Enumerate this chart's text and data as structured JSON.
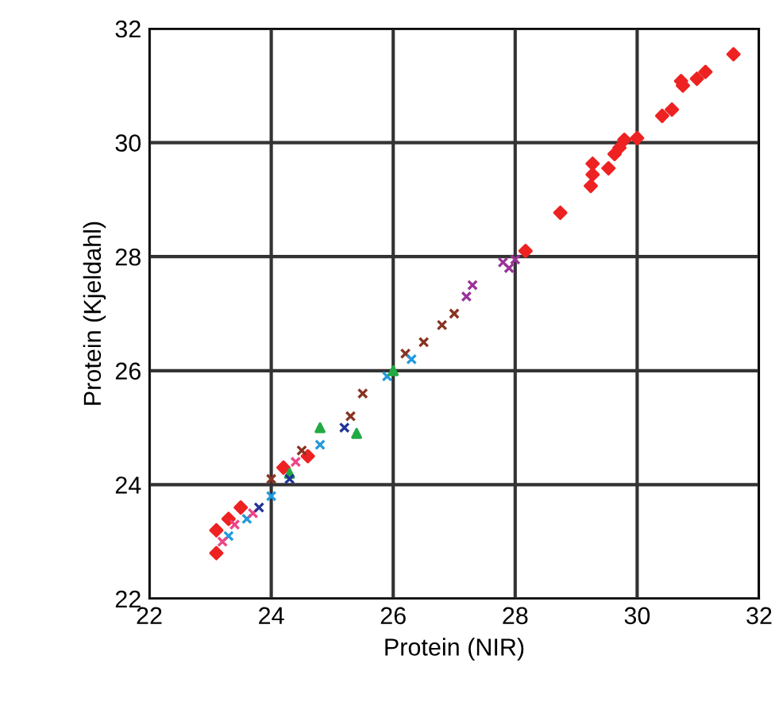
{
  "chart_data": {
    "type": "scatter",
    "xlabel": "Protein (NIR)",
    "ylabel": "Protein (Kjeldahl)",
    "xlim": [
      22,
      32
    ],
    "ylim": [
      22,
      32
    ],
    "xticks": [
      22,
      24,
      26,
      28,
      30,
      32
    ],
    "yticks": [
      22,
      24,
      26,
      28,
      30,
      32
    ],
    "grid": true,
    "series": [
      {
        "color": "#ee2222",
        "marker": "diamond",
        "x": [
          31.58,
          31.12,
          30.98,
          30.75,
          30.72,
          30.57,
          30.41,
          30.0,
          29.79,
          29.71,
          29.63,
          29.53,
          29.27,
          29.27,
          29.24,
          28.74,
          28.17,
          23.1,
          23.1,
          23.3,
          23.5,
          24.2,
          24.6
        ],
        "values": [
          31.55,
          31.24,
          31.12,
          31.0,
          31.08,
          30.58,
          30.47,
          30.08,
          30.05,
          29.91,
          29.8,
          29.55,
          29.63,
          29.44,
          29.24,
          28.77,
          28.1,
          22.8,
          23.2,
          23.4,
          23.6,
          24.3,
          24.5
        ]
      },
      {
        "color": "#993399",
        "marker": "cross",
        "x": [
          27.8,
          28.0,
          27.9,
          27.2,
          27.3
        ],
        "values": [
          27.9,
          27.95,
          27.8,
          27.3,
          27.5
        ]
      },
      {
        "color": "#883322",
        "marker": "cross",
        "x": [
          26.5,
          26.8,
          27.0,
          25.5,
          25.3,
          24.5,
          24.0,
          26.2
        ],
        "values": [
          26.5,
          26.8,
          27.0,
          25.6,
          25.2,
          24.6,
          24.1,
          26.3
        ]
      },
      {
        "color": "#2299dd",
        "marker": "cross",
        "x": [
          23.3,
          23.6,
          24.0,
          25.9,
          26.3,
          24.8
        ],
        "values": [
          23.1,
          23.4,
          23.8,
          25.9,
          26.2,
          24.7
        ]
      },
      {
        "color": "#22aa44",
        "marker": "triangle",
        "x": [
          25.4,
          24.8,
          24.3,
          26.0
        ],
        "values": [
          24.9,
          25.0,
          24.2,
          26.0
        ]
      },
      {
        "color": "#ee4488",
        "marker": "cross",
        "x": [
          23.2,
          23.4,
          23.7,
          24.4
        ],
        "values": [
          23.0,
          23.3,
          23.5,
          24.4
        ]
      },
      {
        "color": "#223399",
        "marker": "cross",
        "x": [
          23.8,
          24.3,
          25.2
        ],
        "values": [
          23.6,
          24.1,
          25.0
        ]
      }
    ]
  }
}
